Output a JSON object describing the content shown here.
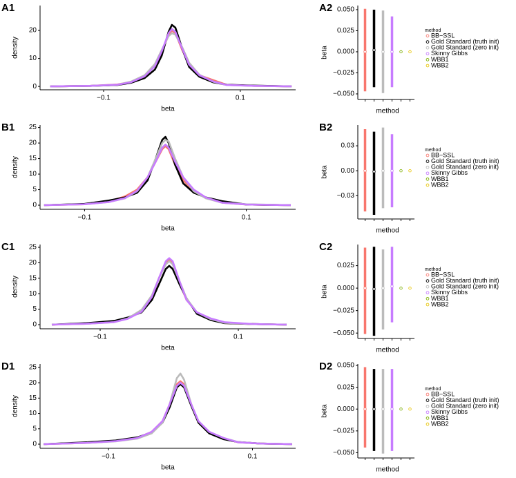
{
  "chart_data": [
    {
      "type": "line",
      "panel": "A1",
      "xlabel": "beta",
      "ylabel": "density",
      "x": [
        -0.178,
        -0.12,
        -0.08,
        -0.06,
        -0.04,
        -0.025,
        -0.015,
        -0.005,
        0,
        0.005,
        0.015,
        0.025,
        0.04,
        0.06,
        0.08,
        0.12,
        0.175
      ],
      "series": [
        {
          "color": "#F8766D",
          "values": [
            0,
            0.2,
            0.7,
            1.6,
            3.8,
            7.5,
            12,
            18.5,
            20,
            19,
            13,
            8,
            4,
            2.3,
            0.6,
            0.2,
            0
          ]
        },
        {
          "color": "#000000",
          "values": [
            0,
            0.2,
            0.5,
            1.3,
            3,
            6,
            11,
            19.5,
            22,
            21,
            13.5,
            7,
            3.5,
            1.5,
            0.6,
            0.3,
            0
          ]
        },
        {
          "color": "#BBBBBB",
          "values": [
            0,
            0.2,
            0.6,
            1.7,
            4,
            8,
            13,
            18,
            19,
            18.5,
            14,
            8.5,
            4.2,
            1.7,
            0.5,
            0.2,
            0
          ]
        },
        {
          "color": "#C77CFF",
          "values": [
            0,
            0.2,
            0.6,
            1.5,
            3.6,
            7.2,
            12.5,
            19,
            20.5,
            19.5,
            13.5,
            7.8,
            4,
            1.8,
            0.5,
            0.2,
            0
          ]
        }
      ],
      "xlim": [
        -0.193,
        0.181
      ],
      "ylim": [
        -1.2,
        28.9
      ],
      "xticks": [
        {
          "value": -0.1,
          "label": "−0.1"
        },
        0.1
      ],
      "yticks": [
        0,
        10,
        20
      ]
    },
    {
      "type": "pointrange",
      "panel": "A2",
      "xlabel": "method",
      "ylabel": "beta",
      "legend_title": "method",
      "categories": [
        "BB−SSL",
        "Gold Standard (truth init)",
        "Gold Standard (zero init)",
        "Skinny Gibbs",
        "WBB1",
        "WBB2"
      ],
      "colors": [
        "#F8766D",
        "#000000",
        "#BBBBBB",
        "#C77CFF",
        "#7CAE00",
        "#E6C300"
      ],
      "values": [
        0,
        0.002,
        0,
        0,
        0,
        0
      ],
      "lower": [
        -0.047,
        -0.042,
        -0.049,
        -0.042,
        0,
        0
      ],
      "upper": [
        0.051,
        0.05,
        0.049,
        0.042,
        0,
        0
      ],
      "ylim": [
        -0.0566,
        0.0549
      ],
      "yticks": [
        {
          "value": -0.05,
          "label": "−0.050"
        },
        {
          "value": -0.025,
          "label": "−0.025"
        },
        {
          "value": 0,
          "label": "0.000"
        },
        0.025,
        {
          "value": 0.05,
          "label": "0.050"
        }
      ]
    },
    {
      "type": "line",
      "panel": "B1",
      "xlabel": "beta",
      "ylabel": "density",
      "x": [
        -0.15,
        -0.1,
        -0.07,
        -0.05,
        -0.035,
        -0.022,
        -0.012,
        -0.004,
        0,
        0.004,
        0.012,
        0.022,
        0.035,
        0.05,
        0.07,
        0.1,
        0.155
      ],
      "series": [
        {
          "color": "#F8766D",
          "values": [
            0,
            0.3,
            1.2,
            2.8,
            5,
            9,
            14,
            18,
            19,
            18,
            13,
            8,
            4.5,
            2.5,
            0.8,
            0.2,
            0
          ]
        },
        {
          "color": "#000000",
          "values": [
            0,
            0.4,
            1.5,
            2.5,
            4,
            8,
            15,
            21,
            22,
            20,
            13,
            7,
            4,
            2.5,
            1.3,
            0.2,
            0
          ]
        },
        {
          "color": "#BBBBBB",
          "values": [
            0,
            0.3,
            1,
            2.2,
            4.5,
            9,
            15,
            20,
            21,
            20.5,
            15,
            9,
            4.5,
            2.2,
            0.8,
            0.3,
            0
          ]
        },
        {
          "color": "#C77CFF",
          "values": [
            0,
            0.3,
            1,
            2.3,
            4.6,
            9,
            14,
            18.5,
            19.5,
            18.5,
            14,
            9,
            5,
            2.5,
            0.8,
            0.2,
            0
          ]
        }
      ],
      "xlim": [
        -0.155,
        0.161
      ],
      "ylim": [
        -1.33,
        25.8
      ],
      "xticks": [
        {
          "value": -0.1,
          "label": "−0.1"
        },
        0.1
      ],
      "yticks": [
        0,
        5,
        10,
        15,
        20,
        25
      ]
    },
    {
      "type": "pointrange",
      "panel": "B2",
      "xlabel": "method",
      "ylabel": "beta",
      "legend_title": "method",
      "categories": [
        "BB−SSL",
        "Gold Standard (truth init)",
        "Gold Standard (zero init)",
        "Skinny Gibbs",
        "WBB1",
        "WBB2"
      ],
      "colors": [
        "#F8766D",
        "#000000",
        "#BBBBBB",
        "#C77CFF",
        "#7CAE00",
        "#E6C300"
      ],
      "values": [
        0,
        -0.001,
        0,
        0,
        0,
        0
      ],
      "lower": [
        -0.049,
        -0.053,
        -0.045,
        -0.044,
        0,
        0
      ],
      "upper": [
        0.05,
        0.047,
        0.052,
        0.044,
        0,
        0
      ],
      "ylim": [
        -0.058,
        0.055
      ],
      "yticks": [
        {
          "value": -0.03,
          "label": "−0.03"
        },
        {
          "value": 0,
          "label": "0.00"
        },
        0.03
      ]
    },
    {
      "type": "line",
      "panel": "C1",
      "xlabel": "beta",
      "ylabel": "density",
      "x": [
        -0.17,
        -0.12,
        -0.08,
        -0.06,
        -0.04,
        -0.025,
        -0.015,
        -0.005,
        0,
        0.005,
        0.015,
        0.025,
        0.04,
        0.06,
        0.08,
        0.12,
        0.17
      ],
      "series": [
        {
          "color": "#F8766D",
          "values": [
            0,
            0.3,
            0.9,
            2,
            4.5,
            9,
            15,
            20,
            21,
            20,
            13.5,
            8,
            4,
            1.8,
            0.5,
            0.2,
            0
          ]
        },
        {
          "color": "#000000",
          "values": [
            0,
            0.5,
            1.2,
            2.3,
            4,
            8,
            13,
            18,
            19,
            18,
            13,
            8.5,
            3.5,
            1.5,
            0.5,
            0.2,
            0
          ]
        },
        {
          "color": "#BBBBBB",
          "values": [
            0,
            0.3,
            0.8,
            2,
            4.8,
            9.5,
            15,
            19.5,
            20.5,
            19.5,
            14,
            8.5,
            4,
            1.8,
            0.6,
            0.2,
            0
          ]
        },
        {
          "color": "#C77CFF",
          "values": [
            0,
            0.3,
            0.8,
            1.9,
            4.2,
            9,
            15,
            20.5,
            21.5,
            20.5,
            14,
            8,
            4,
            2,
            0.8,
            0.2,
            0
          ]
        }
      ],
      "xlim": [
        -0.187,
        0.183
      ],
      "ylim": [
        -1.34,
        25.9
      ],
      "xticks": [
        {
          "value": -0.1,
          "label": "−0.1"
        },
        0.1
      ],
      "yticks": [
        0,
        5,
        10,
        15,
        20,
        25
      ]
    },
    {
      "type": "pointrange",
      "panel": "C2",
      "xlabel": "method",
      "ylabel": "beta",
      "legend_title": "method",
      "categories": [
        "BB−SSL",
        "Gold Standard (truth init)",
        "Gold Standard (zero init)",
        "Skinny Gibbs",
        "WBB1",
        "WBB2"
      ],
      "colors": [
        "#F8766D",
        "#000000",
        "#BBBBBB",
        "#C77CFF",
        "#7CAE00",
        "#E6C300"
      ],
      "values": [
        0,
        -0.001,
        0,
        0.002,
        0,
        0
      ],
      "lower": [
        -0.051,
        -0.053,
        -0.046,
        -0.038,
        0,
        0
      ],
      "upper": [
        0.045,
        0.046,
        0.043,
        0.046,
        0,
        0
      ],
      "ylim": [
        -0.056,
        0.0485
      ],
      "yticks": [
        {
          "value": -0.05,
          "label": "−0.050"
        },
        {
          "value": -0.025,
          "label": "−0.025"
        },
        {
          "value": 0,
          "label": "0.000"
        },
        0.025
      ]
    },
    {
      "type": "line",
      "panel": "D1",
      "xlabel": "beta",
      "ylabel": "density",
      "x": [
        -0.19,
        -0.13,
        -0.09,
        -0.06,
        -0.04,
        -0.025,
        -0.015,
        -0.005,
        0,
        0.005,
        0.015,
        0.025,
        0.04,
        0.06,
        0.08,
        0.11,
        0.155
      ],
      "series": [
        {
          "color": "#F8766D",
          "values": [
            0,
            0.4,
            1,
            2,
            4,
            7.5,
            13,
            19.5,
            20.5,
            19.5,
            13,
            7,
            3.8,
            1.8,
            0.6,
            0.2,
            0
          ]
        },
        {
          "color": "#000000",
          "values": [
            0,
            0.6,
            1.2,
            2.2,
            3.8,
            7,
            12,
            18.5,
            19.5,
            18.5,
            12.5,
            7,
            3.5,
            1.6,
            0.7,
            0.2,
            0
          ]
        },
        {
          "color": "#BBBBBB",
          "values": [
            0,
            0.4,
            0.9,
            1.8,
            3.5,
            7,
            13,
            21.5,
            23,
            21,
            13,
            7.5,
            4,
            2,
            0.7,
            0.2,
            0
          ]
        },
        {
          "color": "#C77CFF",
          "values": [
            0,
            0.4,
            1,
            2,
            4,
            7.5,
            13,
            19,
            20,
            19,
            13,
            7.5,
            4,
            2,
            0.6,
            0.2,
            0
          ]
        }
      ],
      "xlim": [
        -0.195,
        0.16
      ],
      "ylim": [
        -1.35,
        26.1
      ],
      "xticks": [
        {
          "value": -0.1,
          "label": "−0.1"
        },
        0.1
      ],
      "yticks": [
        0,
        5,
        10,
        15,
        20,
        25
      ]
    },
    {
      "type": "pointrange",
      "panel": "D2",
      "xlabel": "method",
      "ylabel": "beta",
      "legend_title": "method",
      "categories": [
        "BB−SSL",
        "Gold Standard (truth init)",
        "Gold Standard (zero init)",
        "Skinny Gibbs",
        "WBB1",
        "WBB2"
      ],
      "colors": [
        "#F8766D",
        "#000000",
        "#BBBBBB",
        "#C77CFF",
        "#7CAE00",
        "#E6C300"
      ],
      "values": [
        0,
        0,
        0,
        0,
        0,
        0
      ],
      "lower": [
        -0.044,
        -0.048,
        -0.051,
        -0.048,
        0,
        0
      ],
      "upper": [
        0.048,
        0.046,
        0.046,
        0.046,
        0,
        0
      ],
      "ylim": [
        -0.056,
        0.0516
      ],
      "yticks": [
        {
          "value": -0.05,
          "label": "−0.050"
        },
        {
          "value": -0.025,
          "label": "−0.025"
        },
        {
          "value": 0,
          "label": "0.000"
        },
        0.025,
        {
          "value": 0.05,
          "label": "0.050"
        }
      ]
    }
  ]
}
